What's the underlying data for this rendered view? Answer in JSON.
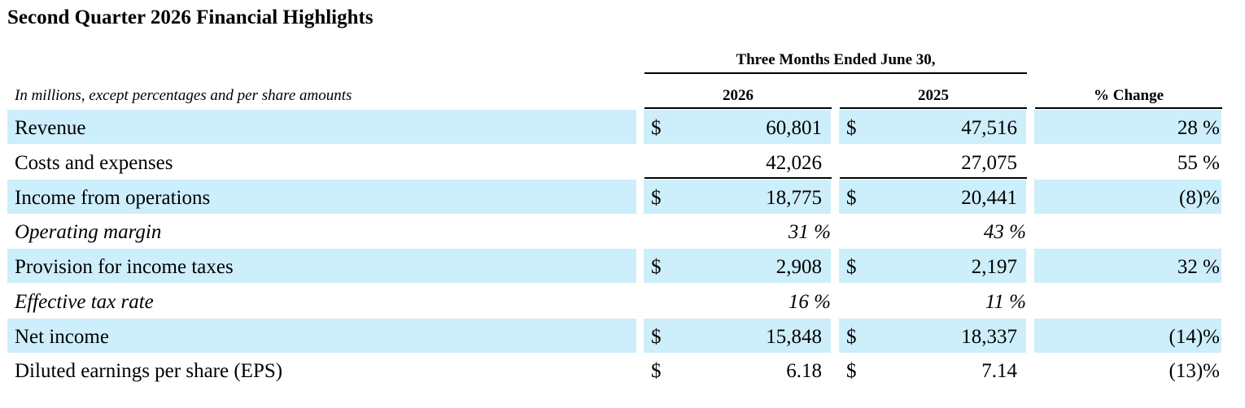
{
  "report": {
    "title": "Second Quarter 2026 Financial Highlights",
    "group_header": "Three Months Ended June 30,",
    "units_note": "In millions, except percentages and per share amounts",
    "columns": {
      "year_current": "2026",
      "year_prior": "2025",
      "change": "% Change"
    }
  },
  "rows": [
    {
      "label": "Revenue",
      "shaded": true,
      "italic": false,
      "dollar_a": "$",
      "value_a": "60,801",
      "dollar_b": "$",
      "value_b": "47,516",
      "change": "28 %"
    },
    {
      "label": "Costs and expenses",
      "shaded": false,
      "italic": false,
      "dollar_a": "",
      "value_a": "42,026",
      "dollar_b": "",
      "value_b": "27,075",
      "change": "55 %"
    },
    {
      "label": "Income from operations",
      "shaded": true,
      "italic": false,
      "dollar_a": "$",
      "value_a": "18,775",
      "dollar_b": "$",
      "value_b": "20,441",
      "change": "(8)%"
    },
    {
      "label": "Operating margin",
      "shaded": false,
      "italic": true,
      "dollar_a": "",
      "value_a": "31 %",
      "dollar_b": "",
      "value_b": "43 %",
      "change": ""
    },
    {
      "label": "Provision for income taxes",
      "shaded": true,
      "italic": false,
      "dollar_a": "$",
      "value_a": "2,908",
      "dollar_b": "$",
      "value_b": "2,197",
      "change": "32 %"
    },
    {
      "label": "Effective tax rate",
      "shaded": false,
      "italic": true,
      "dollar_a": "",
      "value_a": "16 %",
      "dollar_b": "",
      "value_b": "11 %",
      "change": ""
    },
    {
      "label": "Net income",
      "shaded": true,
      "italic": false,
      "dollar_a": "$",
      "value_a": "15,848",
      "dollar_b": "$",
      "value_b": "18,337",
      "change": "(14)%"
    },
    {
      "label": "Diluted earnings per share (EPS)",
      "shaded": false,
      "italic": false,
      "dollar_a": "$",
      "value_a": "6.18",
      "dollar_b": "$",
      "value_b": "7.14",
      "change": "(13)%"
    }
  ],
  "colors": {
    "row_shading": "#cdeefb",
    "text": "#000000",
    "rule": "#000000"
  }
}
